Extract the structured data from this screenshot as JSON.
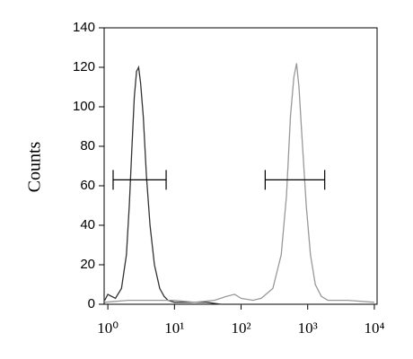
{
  "chart_data": {
    "type": "histogram-line",
    "y_label": "Counts",
    "xscale": "log",
    "xlim": [
      0.88,
      11000
    ],
    "ylim": [
      0,
      140
    ],
    "yticks": [
      0,
      20,
      40,
      60,
      80,
      100,
      120,
      140
    ],
    "xticks": [
      {
        "value": 1,
        "label": "10⁰"
      },
      {
        "value": 10,
        "label": "10¹"
      },
      {
        "value": 100,
        "label": "10²"
      },
      {
        "value": 1000,
        "label": "10³"
      },
      {
        "value": 10000,
        "label": "10⁴"
      }
    ],
    "series": [
      {
        "color": "#333333",
        "x": [
          0.9,
          1.0,
          1.3,
          1.6,
          1.9,
          2.1,
          2.3,
          2.5,
          2.7,
          2.9,
          3.1,
          3.4,
          3.8,
          4.3,
          5,
          6,
          7,
          8,
          10,
          15,
          30,
          50,
          100,
          1000,
          10000
        ],
        "values": [
          2,
          5,
          3,
          8,
          25,
          50,
          80,
          105,
          118,
          120,
          112,
          95,
          65,
          40,
          20,
          8,
          4,
          2,
          1,
          1,
          1,
          0,
          0,
          0,
          0
        ]
      },
      {
        "color": "#999999",
        "x": [
          0.9,
          2,
          5,
          10,
          20,
          40,
          60,
          80,
          100,
          150,
          200,
          300,
          400,
          480,
          550,
          620,
          680,
          740,
          820,
          950,
          1100,
          1300,
          1600,
          2000,
          4000,
          10000
        ],
        "values": [
          1,
          2,
          2,
          2,
          1,
          2,
          4,
          5,
          3,
          2,
          3,
          8,
          25,
          55,
          95,
          115,
          122,
          110,
          85,
          50,
          25,
          10,
          4,
          2,
          2,
          1
        ]
      }
    ],
    "gates": [
      {
        "x": [
          1.2,
          7.5
        ],
        "y": 63
      },
      {
        "x": [
          230,
          1800
        ],
        "y": 63
      }
    ]
  }
}
